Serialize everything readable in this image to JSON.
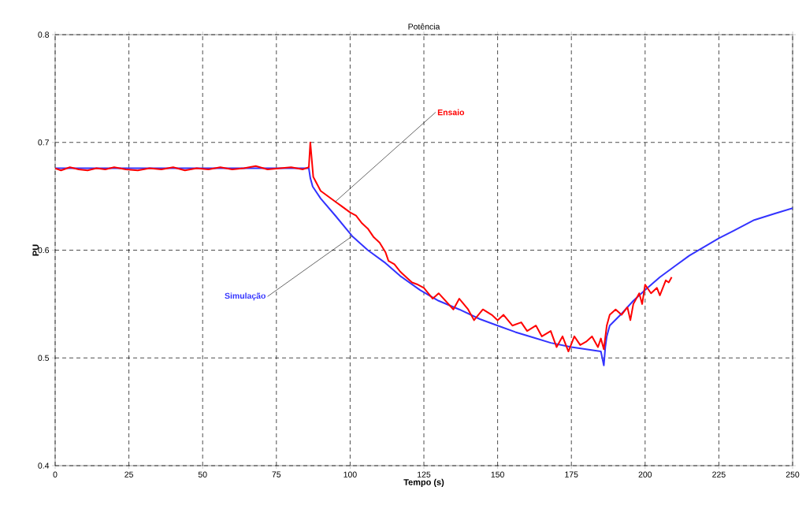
{
  "chart_data": {
    "type": "line",
    "title": "Potência",
    "xlabel": "Tempo (s)",
    "ylabel": "PU",
    "xlim": [
      0,
      250
    ],
    "ylim": [
      0.4,
      0.8
    ],
    "xticks": [
      0,
      25,
      50,
      75,
      100,
      125,
      150,
      175,
      200,
      225,
      250
    ],
    "yticks": [
      {
        "value": 0.4,
        "label": "0.4"
      },
      {
        "value": 0.5,
        "label": "0.5"
      },
      {
        "value": 0.6,
        "label": "0.6"
      },
      {
        "value": 0.7,
        "label": "0.7"
      },
      {
        "value": 0.8,
        "label": "0.8"
      }
    ],
    "grid": true,
    "legend": false,
    "marker": "none",
    "line_style": "solid",
    "series": [
      {
        "name": "Simulação",
        "color": "#3333ff",
        "x": [
          0,
          25,
          50,
          75,
          86,
          86.5,
          87.3,
          90,
          95,
          100.7,
          106,
          112,
          117,
          123.7,
          130,
          137,
          144,
          150,
          156,
          162,
          168,
          175,
          180,
          185,
          186,
          186.5,
          187,
          188,
          192,
          196,
          200,
          205,
          210,
          215,
          220,
          225,
          230,
          237,
          244,
          250
        ],
        "values": [
          0.676,
          0.676,
          0.676,
          0.676,
          0.676,
          0.667,
          0.659,
          0.648,
          0.632,
          0.613,
          0.6,
          0.588,
          0.576,
          0.563,
          0.553,
          0.545,
          0.536,
          0.53,
          0.524,
          0.519,
          0.514,
          0.51,
          0.508,
          0.506,
          0.493,
          0.51,
          0.52,
          0.53,
          0.541,
          0.553,
          0.563,
          0.575,
          0.585,
          0.595,
          0.603,
          0.611,
          0.618,
          0.628,
          0.634,
          0.639
        ]
      },
      {
        "name": "Ensaio",
        "color": "#ff0000",
        "x": [
          0,
          2,
          5,
          8,
          11,
          14,
          17,
          20,
          24,
          28,
          32,
          36,
          40,
          44,
          48,
          52,
          56,
          60,
          64,
          68,
          72,
          76,
          80,
          84,
          86,
          86.5,
          87.5,
          90,
          92,
          95,
          97,
          100,
          102,
          104,
          106,
          108,
          110,
          112,
          113,
          115,
          117,
          119,
          121,
          123,
          125,
          128,
          130,
          135,
          137,
          140,
          142,
          145,
          148,
          150,
          152,
          155,
          158,
          160,
          163,
          165,
          168,
          170,
          172,
          174,
          176,
          178,
          180,
          182,
          184,
          185,
          186,
          187,
          188,
          190,
          192,
          194,
          195,
          196,
          198,
          199,
          200,
          202,
          204,
          205,
          207,
          208,
          209
        ],
        "values": [
          0.676,
          0.674,
          0.677,
          0.675,
          0.674,
          0.676,
          0.675,
          0.677,
          0.675,
          0.674,
          0.676,
          0.675,
          0.677,
          0.674,
          0.676,
          0.675,
          0.677,
          0.675,
          0.676,
          0.678,
          0.675,
          0.676,
          0.677,
          0.675,
          0.677,
          0.7,
          0.668,
          0.655,
          0.651,
          0.645,
          0.641,
          0.635,
          0.632,
          0.625,
          0.62,
          0.612,
          0.607,
          0.598,
          0.59,
          0.587,
          0.58,
          0.575,
          0.57,
          0.568,
          0.565,
          0.555,
          0.56,
          0.545,
          0.555,
          0.545,
          0.535,
          0.545,
          0.54,
          0.535,
          0.54,
          0.53,
          0.533,
          0.525,
          0.53,
          0.52,
          0.525,
          0.51,
          0.52,
          0.506,
          0.52,
          0.512,
          0.515,
          0.52,
          0.51,
          0.518,
          0.508,
          0.53,
          0.54,
          0.545,
          0.54,
          0.547,
          0.535,
          0.55,
          0.56,
          0.55,
          0.568,
          0.56,
          0.565,
          0.558,
          0.572,
          0.57,
          0.575
        ]
      }
    ]
  }
}
